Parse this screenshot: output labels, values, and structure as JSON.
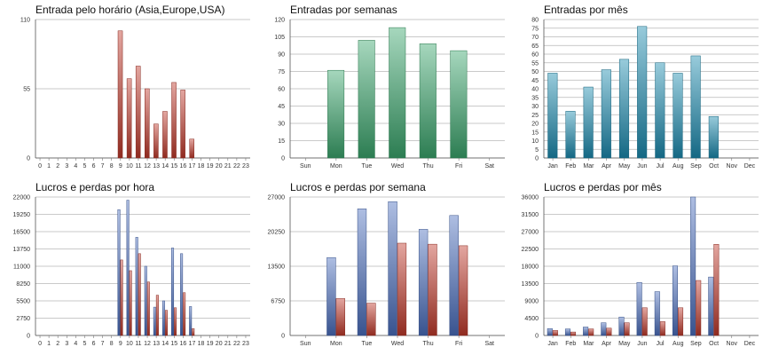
{
  "chart_data": [
    {
      "type": "bar",
      "title": "Entrada pelo horário (Asia,Europe,USA)",
      "categories": [
        "0",
        "1",
        "2",
        "3",
        "4",
        "5",
        "6",
        "7",
        "8",
        "9",
        "10",
        "11",
        "12",
        "13",
        "14",
        "15",
        "16",
        "17",
        "18",
        "19",
        "20",
        "21",
        "22",
        "23"
      ],
      "series": [
        {
          "values": [
            0,
            0,
            0,
            0,
            0,
            0,
            0,
            0,
            0,
            101,
            63,
            73,
            55,
            27,
            37,
            60,
            54,
            15,
            0,
            0,
            0,
            0,
            0,
            0
          ],
          "color": "#c0392b"
        }
      ],
      "y_ticks": [
        "0",
        "55",
        "110"
      ],
      "ylim": [
        0,
        110
      ],
      "grid": true,
      "style": "red"
    },
    {
      "type": "bar",
      "title": "Entradas por semanas",
      "categories": [
        "Sun",
        "Mon",
        "Tue",
        "Wed",
        "Thu",
        "Fri",
        "Sat"
      ],
      "series": [
        {
          "values": [
            0,
            76,
            102,
            113,
            99,
            93,
            0
          ],
          "color": "#3aa76d"
        }
      ],
      "y_ticks": [
        "0",
        "15",
        "30",
        "45",
        "60",
        "75",
        "90",
        "105",
        "120"
      ],
      "ylim": [
        0,
        120
      ],
      "grid": true,
      "style": "green"
    },
    {
      "type": "bar",
      "title": "Entradas por mês",
      "categories": [
        "Jan",
        "Feb",
        "Mar",
        "Apr",
        "May",
        "Jun",
        "Jul",
        "Aug",
        "Sep",
        "Oct",
        "Nov",
        "Dec"
      ],
      "series": [
        {
          "values": [
            49,
            27,
            41,
            51,
            57,
            76,
            55,
            49,
            59,
            24,
            0,
            0
          ],
          "color": "#1b8bb0"
        }
      ],
      "y_ticks": [
        "0",
        "5",
        "10",
        "15",
        "20",
        "25",
        "30",
        "35",
        "40",
        "45",
        "50",
        "55",
        "60",
        "65",
        "70",
        "75",
        "80"
      ],
      "ylim": [
        0,
        80
      ],
      "grid": true,
      "style": "teal"
    },
    {
      "type": "bar",
      "title": "Lucros e perdas por hora",
      "categories": [
        "0",
        "1",
        "2",
        "3",
        "4",
        "5",
        "6",
        "7",
        "8",
        "9",
        "10",
        "11",
        "12",
        "13",
        "14",
        "15",
        "16",
        "17",
        "18",
        "19",
        "20",
        "21",
        "22",
        "23"
      ],
      "series": [
        {
          "values": [
            0,
            0,
            0,
            0,
            0,
            0,
            0,
            0,
            0,
            20000,
            21500,
            15600,
            11000,
            4500,
            5500,
            13900,
            13000,
            4600,
            0,
            0,
            0,
            0,
            0,
            0
          ],
          "color": "#4a6fbf"
        },
        {
          "values": [
            0,
            0,
            0,
            0,
            0,
            0,
            0,
            0,
            0,
            12000,
            10300,
            13000,
            8500,
            6400,
            4000,
            4400,
            6800,
            1100,
            0,
            0,
            0,
            0,
            0,
            0
          ],
          "color": "#c0392b"
        }
      ],
      "y_ticks": [
        "0",
        "2750",
        "5500",
        "8250",
        "11000",
        "13750",
        "16500",
        "19250",
        "22000"
      ],
      "ylim": [
        0,
        22000
      ],
      "grid": true,
      "style": "duo"
    },
    {
      "type": "bar",
      "title": "Lucros e perdas por semana",
      "categories": [
        "Sun",
        "Mon",
        "Tue",
        "Wed",
        "Thu",
        "Fri",
        "Sat"
      ],
      "series": [
        {
          "values": [
            0,
            15200,
            24700,
            26100,
            20700,
            23400,
            0
          ],
          "color": "#4a6fbf"
        },
        {
          "values": [
            0,
            7200,
            6300,
            18000,
            17800,
            17500,
            0
          ],
          "color": "#c0392b"
        }
      ],
      "y_ticks": [
        "0",
        "6750",
        "13500",
        "20250",
        "27000"
      ],
      "ylim": [
        0,
        27000
      ],
      "grid": true,
      "style": "duo"
    },
    {
      "type": "bar",
      "title": "Lucros e perdas por mês",
      "categories": [
        "Jan",
        "Feb",
        "Mar",
        "Apr",
        "May",
        "Jun",
        "Jul",
        "Aug",
        "Sep",
        "Oct",
        "Nov",
        "Dec"
      ],
      "series": [
        {
          "values": [
            1800,
            1700,
            2200,
            3300,
            4800,
            13800,
            11400,
            18100,
            36000,
            15200,
            0,
            0
          ],
          "color": "#4a6fbf"
        },
        {
          "values": [
            1300,
            900,
            1700,
            1900,
            3300,
            7200,
            3600,
            7200,
            14300,
            23700,
            0,
            0
          ],
          "color": "#c0392b"
        }
      ],
      "y_ticks": [
        "0",
        "4500",
        "9000",
        "13500",
        "18000",
        "22500",
        "27000",
        "31500",
        "36000"
      ],
      "ylim": [
        0,
        36000
      ],
      "grid": true,
      "style": "duo"
    }
  ]
}
